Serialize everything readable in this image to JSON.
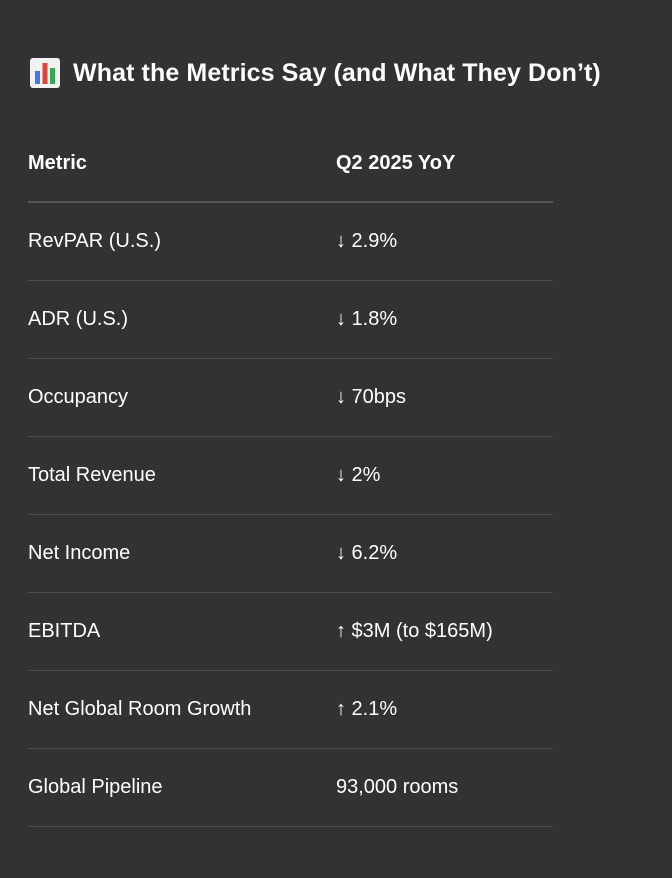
{
  "heading": {
    "icon": "bar-chart-icon",
    "title": "What the Metrics Say (and What They Don’t)"
  },
  "table": {
    "columns": [
      "Metric",
      "Q2 2025 YoY"
    ],
    "rows": [
      {
        "metric": "RevPAR (U.S.)",
        "value": "↓ 2.9%"
      },
      {
        "metric": "ADR (U.S.)",
        "value": "↓ 1.8%"
      },
      {
        "metric": "Occupancy",
        "value": "↓ 70bps"
      },
      {
        "metric": "Total Revenue",
        "value": "↓ 2%"
      },
      {
        "metric": "Net Income",
        "value": "↓ 6.2%"
      },
      {
        "metric": "EBITDA",
        "value": "↑ $3M (to $165M)"
      },
      {
        "metric": "Net Global Room Growth",
        "value": "↑ 2.1%"
      },
      {
        "metric": "Global Pipeline",
        "value": "93,000 rooms"
      }
    ]
  },
  "colors": {
    "background": "#323232",
    "text": "#ffffff",
    "divider": "#4d4d4d"
  }
}
